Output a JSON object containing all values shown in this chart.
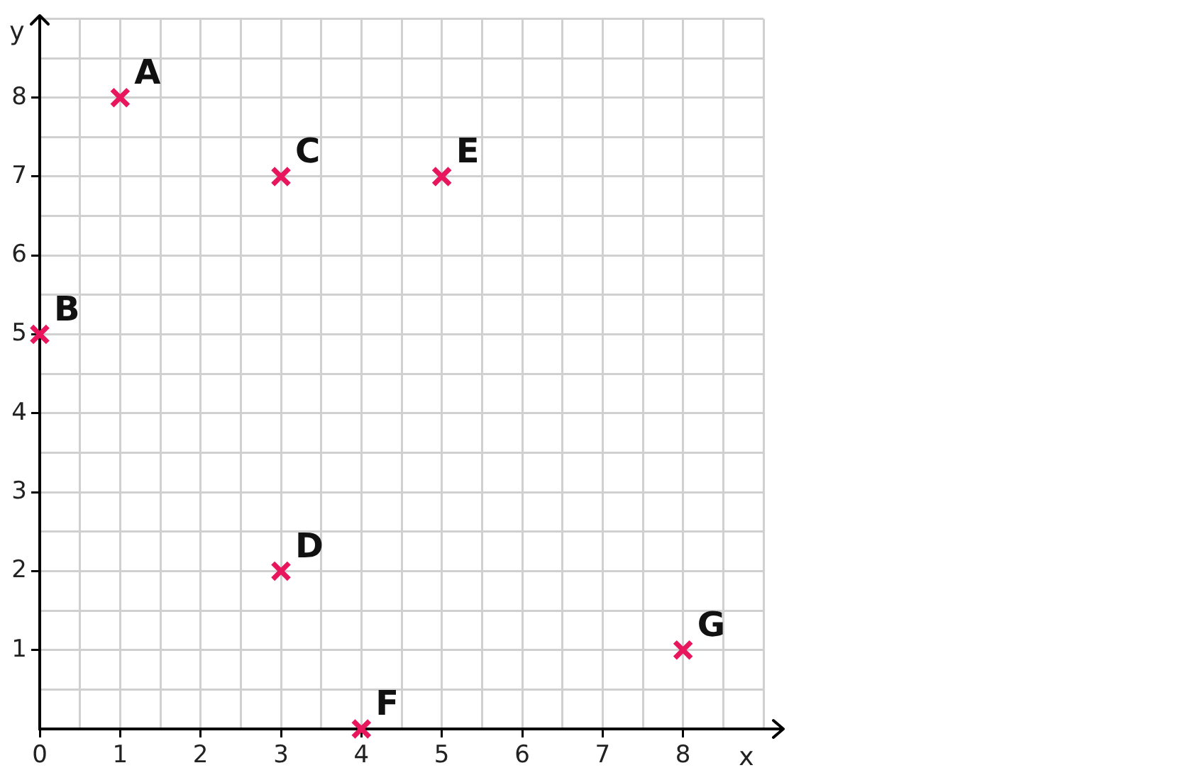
{
  "chart_data": {
    "type": "scatter",
    "xlabel": "x",
    "ylabel": "y",
    "x": [
      1,
      0,
      3,
      3,
      5,
      4,
      8
    ],
    "series": [
      {
        "color": "#e8175d",
        "values": [
          8,
          5,
          7,
          2,
          7,
          0,
          1
        ]
      }
    ],
    "xlim": [
      0,
      9
    ],
    "ylim": [
      0,
      9
    ],
    "xticks": [
      {
        "value": 0,
        "label": "0"
      },
      {
        "value": 0.5,
        "label": null
      },
      1,
      {
        "value": 1.5,
        "label": null
      },
      2,
      {
        "value": 2.5,
        "label": null
      },
      3,
      {
        "value": 3.5,
        "label": null
      },
      4,
      {
        "value": 4.5,
        "label": null
      },
      5,
      {
        "value": 5.5,
        "label": null
      },
      6,
      {
        "value": 6.5,
        "label": null
      },
      7,
      {
        "value": 7.5,
        "label": null
      },
      8,
      {
        "value": 8.5,
        "label": null
      },
      {
        "value": 9,
        "label": null
      }
    ],
    "yticks": [
      {
        "value": 0,
        "label": null
      },
      {
        "value": 0.5,
        "label": null
      },
      1,
      {
        "value": 1.5,
        "label": null
      },
      2,
      {
        "value": 2.5,
        "label": null
      },
      3,
      {
        "value": 3.5,
        "label": null
      },
      4,
      {
        "value": 4.5,
        "label": null
      },
      5,
      {
        "value": 5.5,
        "label": null
      },
      6,
      {
        "value": 6.5,
        "label": null
      },
      7,
      {
        "value": 7.5,
        "label": null
      },
      8,
      {
        "value": 8.5,
        "label": null
      },
      {
        "value": 9,
        "label": null
      }
    ],
    "grid": true,
    "marker": "cross",
    "legend": false,
    "annotations": [
      {
        "text": "A",
        "x": 1,
        "y": 8
      },
      {
        "text": "B",
        "x": 0,
        "y": 5
      },
      {
        "text": "C",
        "x": 3,
        "y": 7
      },
      {
        "text": "D",
        "x": 3,
        "y": 2
      },
      {
        "text": "E",
        "x": 5,
        "y": 7
      },
      {
        "text": "F",
        "x": 4,
        "y": 0
      },
      {
        "text": "G",
        "x": 8,
        "y": 1
      }
    ]
  }
}
